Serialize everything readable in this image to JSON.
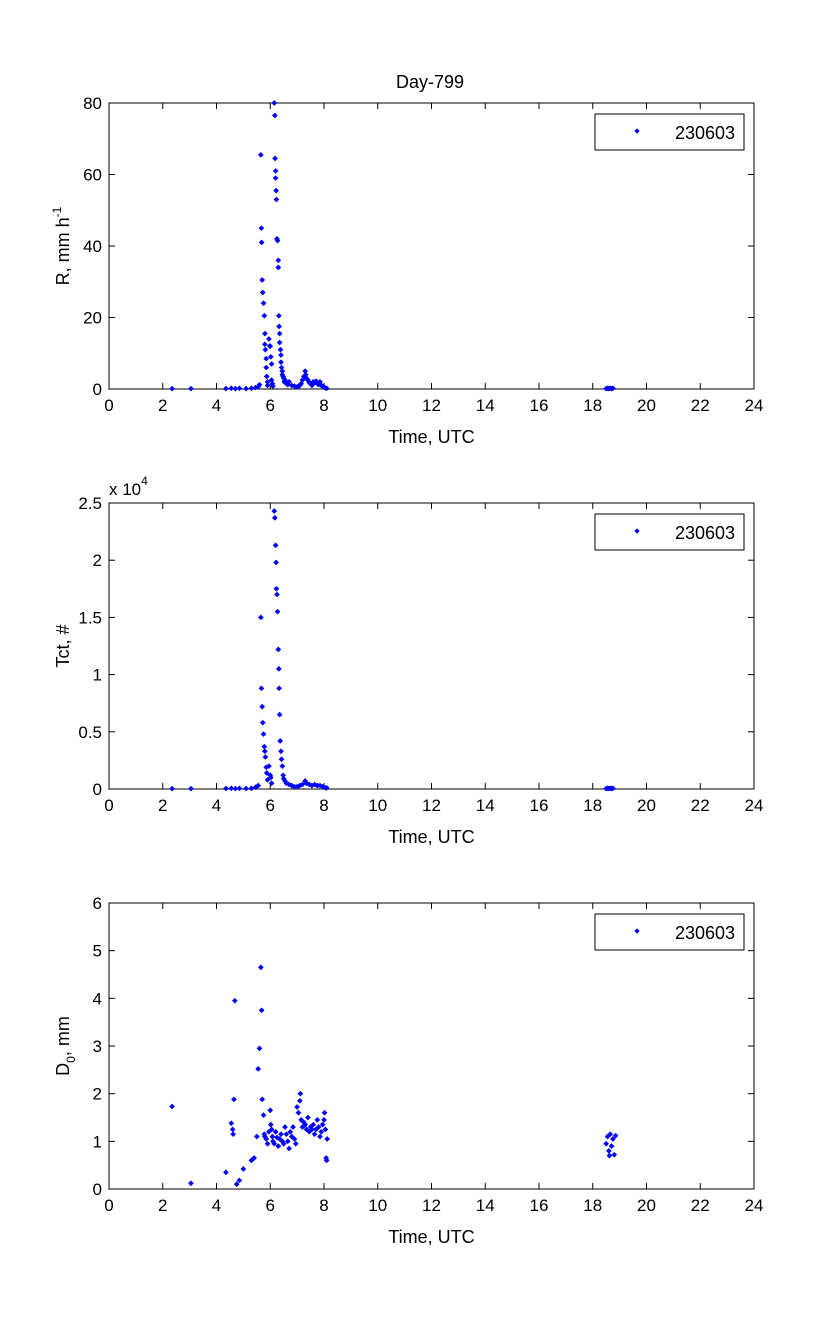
{
  "figure_title": "Day-799",
  "chart_data": [
    {
      "type": "scatter",
      "title": "Day-799",
      "xlabel": "Time, UTC",
      "ylabel": "R, mm h",
      "ylabel_superscript": "-1",
      "xlim": [
        0,
        24
      ],
      "ylim": [
        0,
        80
      ],
      "xticks": [
        0,
        2,
        4,
        6,
        8,
        10,
        12,
        14,
        16,
        18,
        20,
        22,
        24
      ],
      "yticks": [
        0,
        20,
        40,
        60,
        80
      ],
      "multiplier_label": "",
      "grid": false,
      "legend_position": "top-right",
      "series": [
        {
          "name": "230603",
          "color": "#0000ff",
          "marker": "diamond",
          "points": [
            [
              2.35,
              0.1
            ],
            [
              3.05,
              0.1
            ],
            [
              4.35,
              0.1
            ],
            [
              4.55,
              0.2
            ],
            [
              4.7,
              0.1
            ],
            [
              4.85,
              0.2
            ],
            [
              5.1,
              0.1
            ],
            [
              5.3,
              0.2
            ],
            [
              5.45,
              0.4
            ],
            [
              5.55,
              0.6
            ],
            [
              5.6,
              1.2
            ],
            [
              5.65,
              65.5
            ],
            [
              5.67,
              45.0
            ],
            [
              5.68,
              41.0
            ],
            [
              5.7,
              30.5
            ],
            [
              5.72,
              27.0
            ],
            [
              5.75,
              24.0
            ],
            [
              5.78,
              20.5
            ],
            [
              5.8,
              15.5
            ],
            [
              5.8,
              12.5
            ],
            [
              5.82,
              11.0
            ],
            [
              5.85,
              8.5
            ],
            [
              5.85,
              6.0
            ],
            [
              5.87,
              3.5
            ],
            [
              5.9,
              2.0
            ],
            [
              5.9,
              1.0
            ],
            [
              5.95,
              14.0
            ],
            [
              5.98,
              12.0
            ],
            [
              6.0,
              12.0
            ],
            [
              6.02,
              9.0
            ],
            [
              6.05,
              7.0
            ],
            [
              6.05,
              2.5
            ],
            [
              6.08,
              1.5
            ],
            [
              6.1,
              0.8
            ],
            [
              6.15,
              80.0
            ],
            [
              6.17,
              76.5
            ],
            [
              6.18,
              64.5
            ],
            [
              6.2,
              61.0
            ],
            [
              6.2,
              59.0
            ],
            [
              6.22,
              55.5
            ],
            [
              6.23,
              53.0
            ],
            [
              6.25,
              42.0
            ],
            [
              6.27,
              41.5
            ],
            [
              6.3,
              36.0
            ],
            [
              6.3,
              34.0
            ],
            [
              6.32,
              20.5
            ],
            [
              6.33,
              17.5
            ],
            [
              6.35,
              15.5
            ],
            [
              6.35,
              13.0
            ],
            [
              6.38,
              11.0
            ],
            [
              6.4,
              9.5
            ],
            [
              6.4,
              7.5
            ],
            [
              6.42,
              6.0
            ],
            [
              6.45,
              5.0
            ],
            [
              6.45,
              4.0
            ],
            [
              6.48,
              3.5
            ],
            [
              6.5,
              3.0
            ],
            [
              6.52,
              2.0
            ],
            [
              6.55,
              2.5
            ],
            [
              6.6,
              1.5
            ],
            [
              6.65,
              1.2
            ],
            [
              6.7,
              2.0
            ],
            [
              6.8,
              1.0
            ],
            [
              6.9,
              0.8
            ],
            [
              7.0,
              0.6
            ],
            [
              7.05,
              0.8
            ],
            [
              7.1,
              1.0
            ],
            [
              7.15,
              1.5
            ],
            [
              7.2,
              2.5
            ],
            [
              7.25,
              3.5
            ],
            [
              7.3,
              5.0
            ],
            [
              7.32,
              4.0
            ],
            [
              7.35,
              3.0
            ],
            [
              7.4,
              2.5
            ],
            [
              7.45,
              1.8
            ],
            [
              7.5,
              1.5
            ],
            [
              7.55,
              1.0
            ],
            [
              7.6,
              2.0
            ],
            [
              7.65,
              1.8
            ],
            [
              7.7,
              2.2
            ],
            [
              7.75,
              1.5
            ],
            [
              7.8,
              1.2
            ],
            [
              7.85,
              2.0
            ],
            [
              7.9,
              1.0
            ],
            [
              7.95,
              0.8
            ],
            [
              8.0,
              0.5
            ],
            [
              8.05,
              0.3
            ],
            [
              8.1,
              0.2
            ],
            [
              18.5,
              0.1
            ],
            [
              18.55,
              0.2
            ],
            [
              18.6,
              0.1
            ],
            [
              18.65,
              0.2
            ],
            [
              18.7,
              0.1
            ],
            [
              18.75,
              0.2
            ]
          ]
        }
      ]
    },
    {
      "type": "scatter",
      "title": "",
      "xlabel": "Time, UTC",
      "ylabel": "Tct, #",
      "ylabel_superscript": "",
      "xlim": [
        0,
        24
      ],
      "ylim": [
        0,
        2.5
      ],
      "xticks": [
        0,
        2,
        4,
        6,
        8,
        10,
        12,
        14,
        16,
        18,
        20,
        22,
        24
      ],
      "yticks": [
        0,
        0.5,
        1,
        1.5,
        2,
        2.5
      ],
      "multiplier_label": "x 10",
      "multiplier_exponent": "4",
      "grid": false,
      "legend_position": "top-right",
      "series": [
        {
          "name": "230603",
          "color": "#0000ff",
          "marker": "diamond",
          "points": [
            [
              2.35,
              0.003
            ],
            [
              3.05,
              0.003
            ],
            [
              4.35,
              0.004
            ],
            [
              4.55,
              0.006
            ],
            [
              4.7,
              0.004
            ],
            [
              4.85,
              0.006
            ],
            [
              5.1,
              0.004
            ],
            [
              5.3,
              0.006
            ],
            [
              5.45,
              0.015
            ],
            [
              5.55,
              0.03
            ],
            [
              5.65,
              1.5
            ],
            [
              5.67,
              0.88
            ],
            [
              5.7,
              0.72
            ],
            [
              5.72,
              0.58
            ],
            [
              5.75,
              0.48
            ],
            [
              5.78,
              0.37
            ],
            [
              5.8,
              0.33
            ],
            [
              5.82,
              0.28
            ],
            [
              5.85,
              0.19
            ],
            [
              5.87,
              0.14
            ],
            [
              5.9,
              0.08
            ],
            [
              5.95,
              0.2
            ],
            [
              6.0,
              0.12
            ],
            [
              6.02,
              0.1
            ],
            [
              6.05,
              0.05
            ],
            [
              6.15,
              2.43
            ],
            [
              6.17,
              2.37
            ],
            [
              6.2,
              2.13
            ],
            [
              6.22,
              1.98
            ],
            [
              6.23,
              1.75
            ],
            [
              6.25,
              1.7
            ],
            [
              6.27,
              1.55
            ],
            [
              6.3,
              1.22
            ],
            [
              6.32,
              1.05
            ],
            [
              6.33,
              0.88
            ],
            [
              6.35,
              0.65
            ],
            [
              6.37,
              0.42
            ],
            [
              6.4,
              0.33
            ],
            [
              6.42,
              0.26
            ],
            [
              6.45,
              0.2
            ],
            [
              6.48,
              0.12
            ],
            [
              6.5,
              0.09
            ],
            [
              6.55,
              0.07
            ],
            [
              6.6,
              0.05
            ],
            [
              6.7,
              0.04
            ],
            [
              6.8,
              0.03
            ],
            [
              6.9,
              0.02
            ],
            [
              7.0,
              0.02
            ],
            [
              7.1,
              0.03
            ],
            [
              7.2,
              0.04
            ],
            [
              7.3,
              0.07
            ],
            [
              7.35,
              0.05
            ],
            [
              7.45,
              0.04
            ],
            [
              7.55,
              0.03
            ],
            [
              7.65,
              0.04
            ],
            [
              7.75,
              0.03
            ],
            [
              7.85,
              0.03
            ],
            [
              7.95,
              0.02
            ],
            [
              8.05,
              0.01
            ],
            [
              8.1,
              0.01
            ],
            [
              18.5,
              0.004
            ],
            [
              18.55,
              0.006
            ],
            [
              18.6,
              0.004
            ],
            [
              18.65,
              0.006
            ],
            [
              18.7,
              0.004
            ],
            [
              18.75,
              0.006
            ]
          ]
        }
      ]
    },
    {
      "type": "scatter",
      "title": "",
      "xlabel": "Time, UTC",
      "ylabel": "D",
      "ylabel_subscript": "0",
      "ylabel_suffix": ", mm",
      "xlim": [
        0,
        24
      ],
      "ylim": [
        0,
        6
      ],
      "xticks": [
        0,
        2,
        4,
        6,
        8,
        10,
        12,
        14,
        16,
        18,
        20,
        22,
        24
      ],
      "yticks": [
        0,
        1,
        2,
        3,
        4,
        5,
        6
      ],
      "multiplier_label": "",
      "grid": false,
      "legend_position": "top-right",
      "series": [
        {
          "name": "230603",
          "color": "#0000ff",
          "marker": "diamond",
          "points": [
            [
              2.35,
              1.73
            ],
            [
              3.05,
              0.12
            ],
            [
              4.35,
              0.35
            ],
            [
              4.55,
              1.38
            ],
            [
              4.6,
              1.25
            ],
            [
              4.62,
              1.15
            ],
            [
              4.65,
              1.88
            ],
            [
              4.68,
              3.95
            ],
            [
              4.75,
              0.1
            ],
            [
              4.85,
              0.18
            ],
            [
              5.0,
              0.42
            ],
            [
              5.3,
              0.6
            ],
            [
              5.4,
              0.65
            ],
            [
              5.5,
              1.1
            ],
            [
              5.55,
              2.52
            ],
            [
              5.6,
              2.95
            ],
            [
              5.65,
              4.65
            ],
            [
              5.68,
              3.75
            ],
            [
              5.7,
              1.88
            ],
            [
              5.75,
              1.55
            ],
            [
              5.78,
              1.15
            ],
            [
              5.8,
              1.1
            ],
            [
              5.85,
              1.05
            ],
            [
              5.9,
              0.95
            ],
            [
              5.95,
              1.2
            ],
            [
              6.0,
              1.65
            ],
            [
              6.02,
              1.35
            ],
            [
              6.05,
              1.25
            ],
            [
              6.08,
              1.1
            ],
            [
              6.1,
              1.0
            ],
            [
              6.15,
              0.95
            ],
            [
              6.2,
              1.2
            ],
            [
              6.25,
              1.08
            ],
            [
              6.3,
              0.9
            ],
            [
              6.35,
              1.05
            ],
            [
              6.4,
              1.15
            ],
            [
              6.45,
              1.0
            ],
            [
              6.5,
              0.95
            ],
            [
              6.55,
              1.3
            ],
            [
              6.6,
              1.15
            ],
            [
              6.65,
              1.0
            ],
            [
              6.7,
              0.85
            ],
            [
              6.75,
              1.2
            ],
            [
              6.8,
              1.1
            ],
            [
              6.85,
              1.3
            ],
            [
              6.9,
              1.05
            ],
            [
              6.95,
              0.95
            ],
            [
              7.0,
              1.72
            ],
            [
              7.05,
              1.6
            ],
            [
              7.1,
              1.85
            ],
            [
              7.12,
              2.0
            ],
            [
              7.15,
              1.45
            ],
            [
              7.2,
              1.3
            ],
            [
              7.25,
              1.4
            ],
            [
              7.3,
              1.35
            ],
            [
              7.35,
              1.25
            ],
            [
              7.4,
              1.5
            ],
            [
              7.45,
              1.2
            ],
            [
              7.5,
              1.3
            ],
            [
              7.55,
              1.25
            ],
            [
              7.6,
              1.35
            ],
            [
              7.65,
              1.15
            ],
            [
              7.7,
              1.25
            ],
            [
              7.75,
              1.45
            ],
            [
              7.8,
              1.3
            ],
            [
              7.85,
              1.1
            ],
            [
              7.9,
              1.2
            ],
            [
              7.95,
              1.35
            ],
            [
              8.0,
              1.45
            ],
            [
              8.02,
              1.6
            ],
            [
              8.05,
              1.25
            ],
            [
              8.08,
              0.65
            ],
            [
              8.1,
              0.6
            ],
            [
              8.12,
              1.05
            ],
            [
              18.5,
              0.95
            ],
            [
              18.55,
              1.1
            ],
            [
              18.6,
              0.8
            ],
            [
              18.62,
              0.7
            ],
            [
              18.65,
              1.15
            ],
            [
              18.7,
              0.9
            ],
            [
              18.75,
              1.05
            ],
            [
              18.8,
              0.72
            ],
            [
              18.85,
              1.12
            ]
          ]
        }
      ]
    }
  ]
}
